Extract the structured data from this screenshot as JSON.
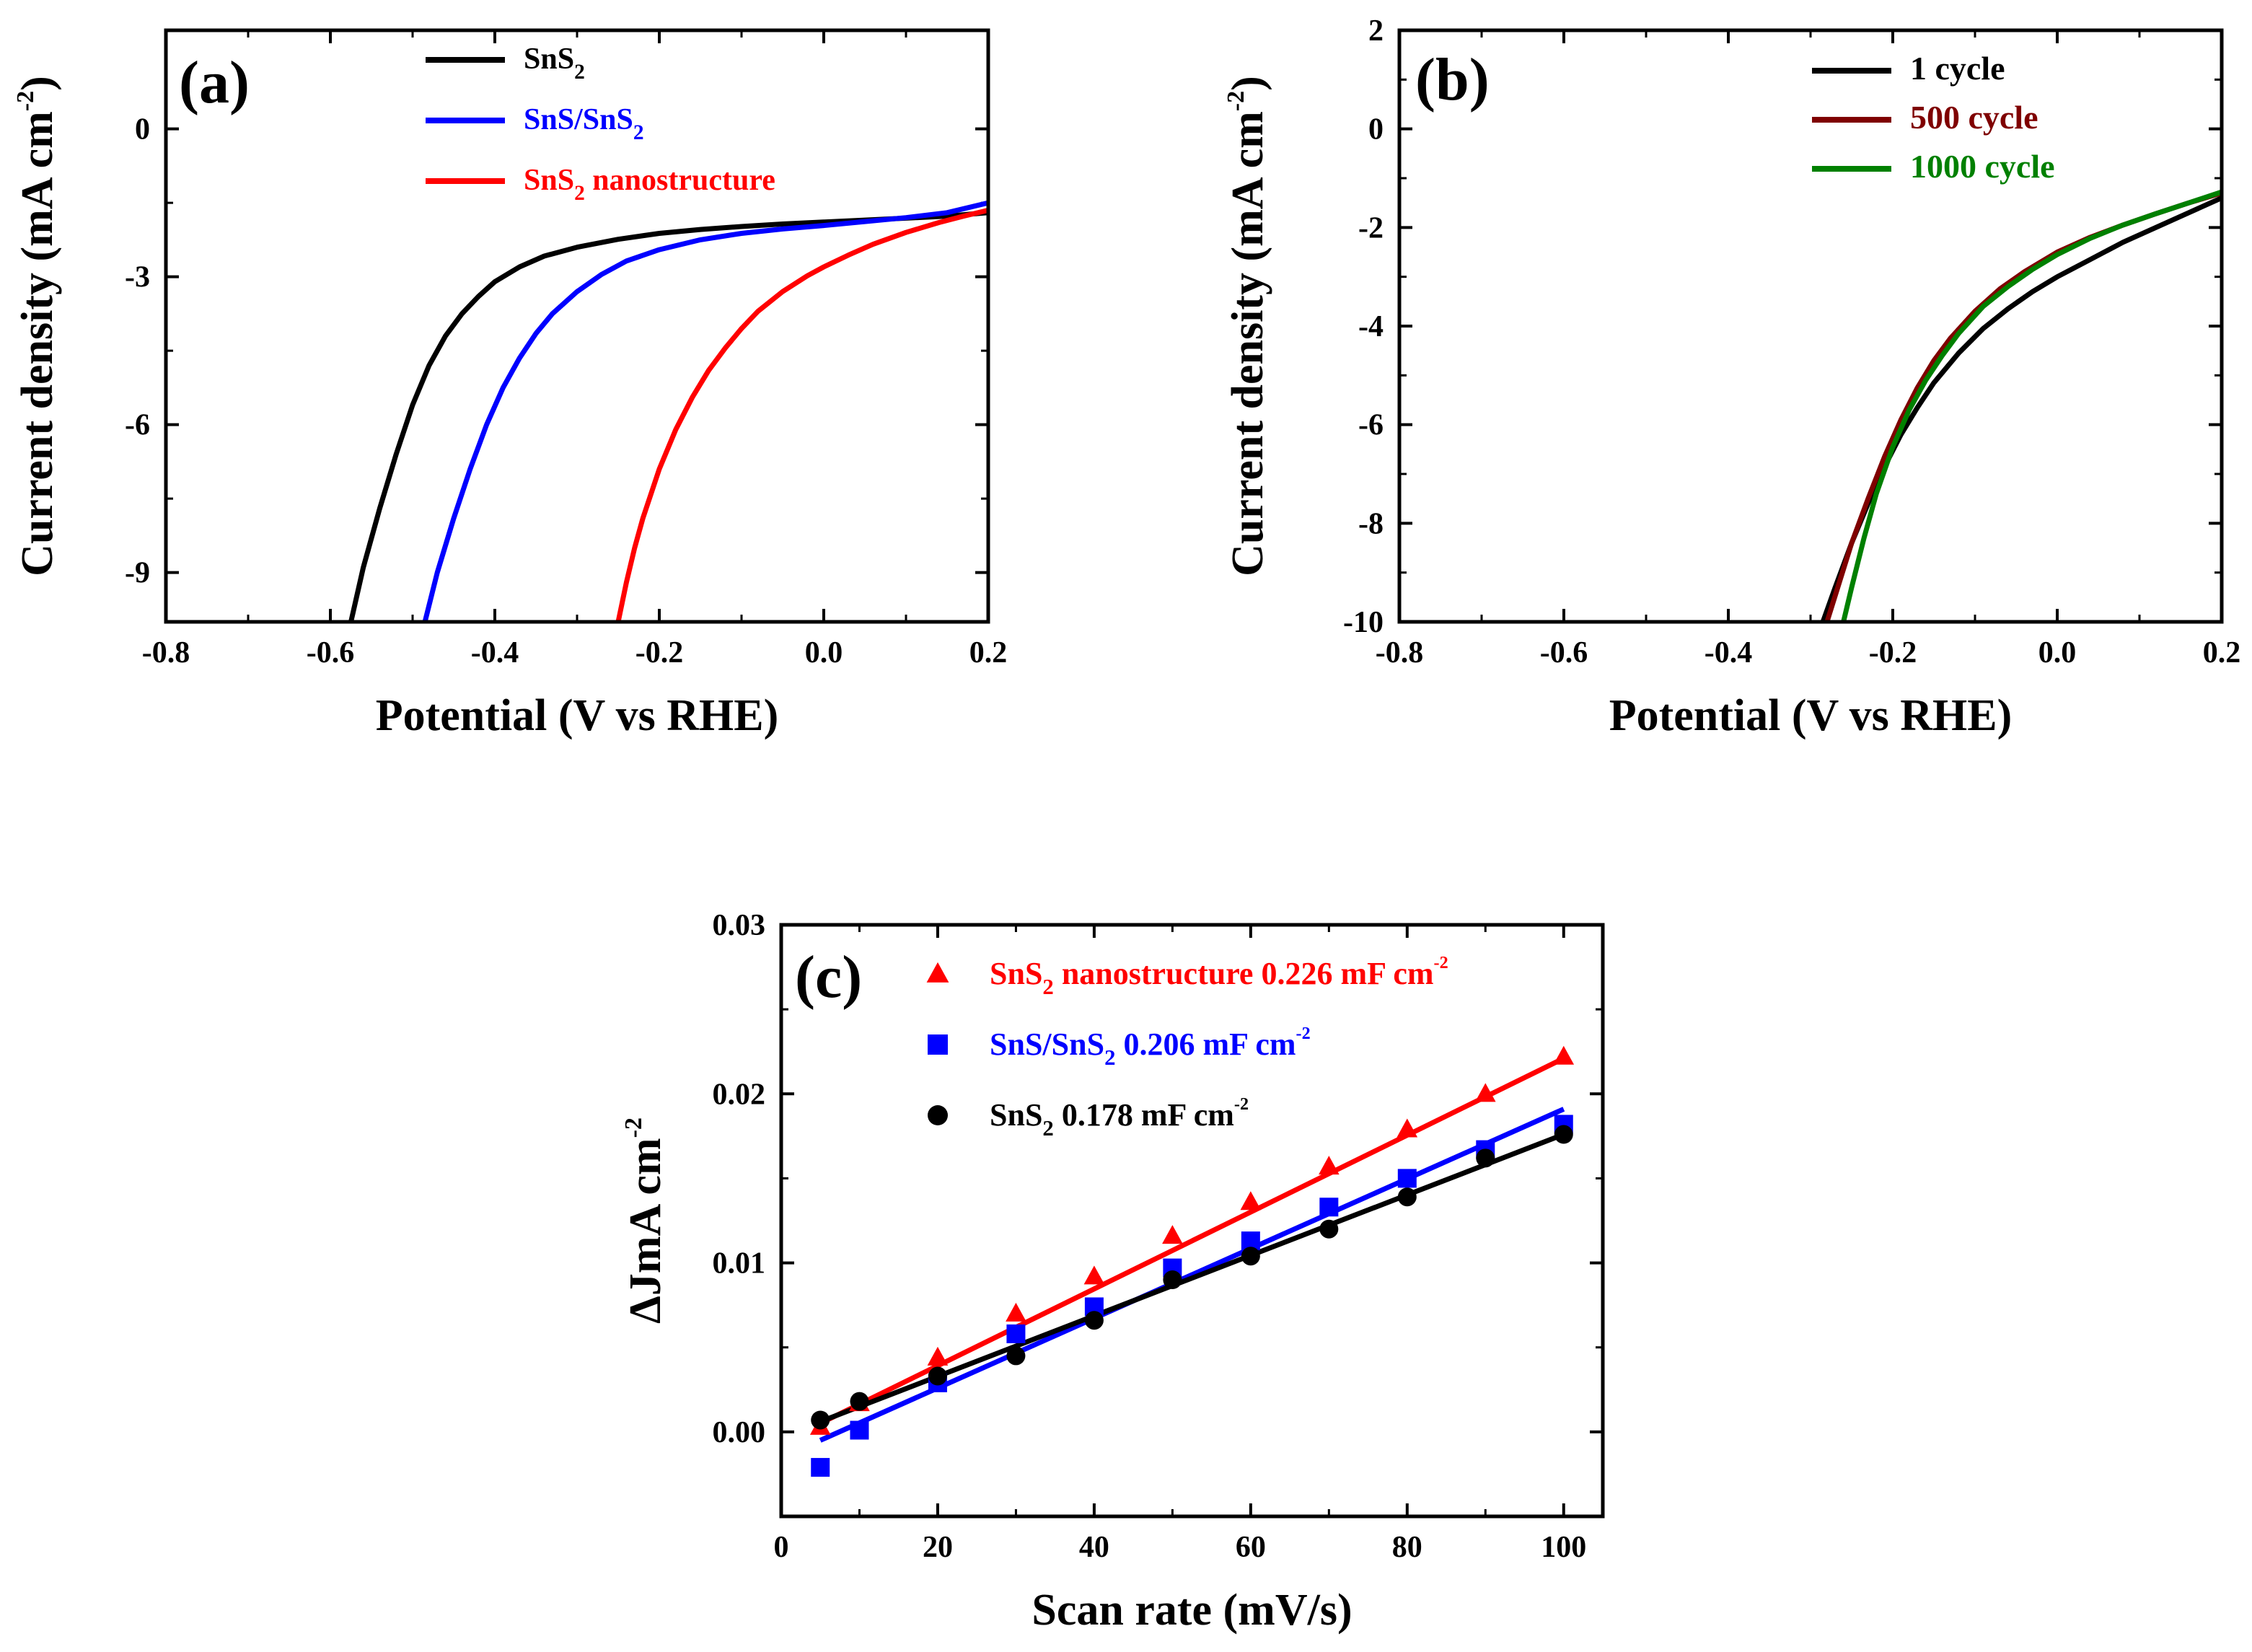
{
  "chart_data": [
    {
      "id": "a",
      "type": "line",
      "panel_label": "(a)",
      "title": "",
      "xlabel": "Potential (V vs RHE)",
      "ylabel": "Current density (mA cm",
      "ylabel_sup": "-2",
      "ylabel_end": ")",
      "xlim": [
        -0.8,
        0.2
      ],
      "ylim": [
        -10,
        2
      ],
      "xticks": [
        -0.8,
        -0.6,
        -0.4,
        -0.2,
        0.0,
        0.2
      ],
      "xtick_labels": [
        "-0.8",
        "-0.6",
        "-0.4",
        "-0.2",
        "0.0",
        "0.2"
      ],
      "yticks": [
        -9,
        -6,
        -3,
        0
      ],
      "ytick_labels": [
        "-9",
        "-6",
        "-3",
        "0"
      ],
      "legend_position": "top-right",
      "series": [
        {
          "name": "SnS2",
          "label_base": "SnS",
          "label_sub": "2",
          "label_rest": "",
          "color": "#000000",
          "x": [
            -0.575,
            -0.56,
            -0.54,
            -0.52,
            -0.5,
            -0.48,
            -0.46,
            -0.44,
            -0.42,
            -0.4,
            -0.37,
            -0.34,
            -0.3,
            -0.25,
            -0.2,
            -0.15,
            -0.1,
            -0.05,
            0.0,
            0.05,
            0.1,
            0.15,
            0.2
          ],
          "values": [
            -10.0,
            -8.9,
            -7.7,
            -6.6,
            -5.6,
            -4.8,
            -4.2,
            -3.75,
            -3.4,
            -3.1,
            -2.8,
            -2.58,
            -2.4,
            -2.24,
            -2.12,
            -2.04,
            -1.98,
            -1.93,
            -1.89,
            -1.85,
            -1.81,
            -1.77,
            -1.7
          ]
        },
        {
          "name": "SnS/SnS2",
          "label_base": "SnS/SnS",
          "label_sub": "2",
          "label_rest": "",
          "color": "#0000ff",
          "x": [
            -0.485,
            -0.47,
            -0.45,
            -0.43,
            -0.41,
            -0.39,
            -0.37,
            -0.35,
            -0.33,
            -0.3,
            -0.27,
            -0.24,
            -0.2,
            -0.15,
            -0.1,
            -0.05,
            0.0,
            0.05,
            0.1,
            0.15,
            0.2
          ],
          "values": [
            -10.0,
            -9.0,
            -7.9,
            -6.9,
            -6.0,
            -5.25,
            -4.65,
            -4.15,
            -3.75,
            -3.3,
            -2.95,
            -2.68,
            -2.45,
            -2.25,
            -2.12,
            -2.03,
            -1.96,
            -1.88,
            -1.8,
            -1.7,
            -1.5
          ]
        },
        {
          "name": "SnS2 nanostructure",
          "label_base": "SnS",
          "label_sub": "2",
          "label_rest": " nanostructure",
          "color": "#ff0000",
          "x": [
            -0.25,
            -0.24,
            -0.23,
            -0.22,
            -0.2,
            -0.18,
            -0.16,
            -0.14,
            -0.12,
            -0.1,
            -0.08,
            -0.05,
            -0.02,
            0.0,
            0.03,
            0.06,
            0.1,
            0.14,
            0.17,
            0.2
          ],
          "values": [
            -10.0,
            -9.2,
            -8.5,
            -7.9,
            -6.9,
            -6.1,
            -5.45,
            -4.9,
            -4.45,
            -4.05,
            -3.7,
            -3.3,
            -2.98,
            -2.8,
            -2.56,
            -2.34,
            -2.1,
            -1.9,
            -1.77,
            -1.65
          ]
        }
      ]
    },
    {
      "id": "b",
      "type": "line",
      "panel_label": "(b)",
      "title": "",
      "xlabel": "Potential (V vs RHE)",
      "ylabel": "Current density (mA cm",
      "ylabel_sup": "-2",
      "ylabel_end": ")",
      "xlim": [
        -0.8,
        0.2
      ],
      "ylim": [
        -10,
        2
      ],
      "xticks": [
        -0.8,
        -0.6,
        -0.4,
        -0.2,
        0.0,
        0.2
      ],
      "xtick_labels": [
        "-0.8",
        "-0.6",
        "-0.4",
        "-0.2",
        "0.0",
        "0.2"
      ],
      "yticks": [
        -10,
        -8,
        -6,
        -4,
        -2,
        0,
        2
      ],
      "ytick_labels": [
        "-10",
        "-8",
        "-6",
        "-4",
        "-2",
        "0",
        "2"
      ],
      "legend_position": "top-right",
      "series": [
        {
          "name": "1 cycle",
          "label_base": "1 cycle",
          "label_sub": "",
          "label_rest": "",
          "color": "#000000",
          "x": [
            -0.285,
            -0.27,
            -0.25,
            -0.23,
            -0.21,
            -0.19,
            -0.17,
            -0.15,
            -0.12,
            -0.09,
            -0.06,
            -0.03,
            0.0,
            0.04,
            0.08,
            0.12,
            0.16,
            0.2
          ],
          "values": [
            -10.0,
            -9.3,
            -8.4,
            -7.6,
            -6.85,
            -6.2,
            -5.65,
            -5.15,
            -4.55,
            -4.05,
            -3.65,
            -3.3,
            -3.0,
            -2.65,
            -2.3,
            -2.0,
            -1.7,
            -1.4
          ]
        },
        {
          "name": "500 cycle",
          "label_base": "500 cycle",
          "label_sub": "",
          "label_rest": "",
          "color": "#7f0000",
          "x": [
            -0.28,
            -0.265,
            -0.25,
            -0.23,
            -0.21,
            -0.19,
            -0.17,
            -0.15,
            -0.13,
            -0.1,
            -0.07,
            -0.04,
            0.0,
            0.04,
            0.08,
            0.12,
            0.16,
            0.2
          ],
          "values": [
            -10.0,
            -9.2,
            -8.4,
            -7.5,
            -6.65,
            -5.9,
            -5.25,
            -4.7,
            -4.25,
            -3.7,
            -3.25,
            -2.9,
            -2.5,
            -2.2,
            -1.95,
            -1.72,
            -1.5,
            -1.3
          ]
        },
        {
          "name": "1000 cycle",
          "label_base": "1000 cycle",
          "label_sub": "",
          "label_rest": "",
          "color": "#008000",
          "x": [
            -0.26,
            -0.25,
            -0.235,
            -0.22,
            -0.2,
            -0.18,
            -0.16,
            -0.14,
            -0.12,
            -0.09,
            -0.06,
            -0.03,
            0.0,
            0.04,
            0.08,
            0.12,
            0.16,
            0.2
          ],
          "values": [
            -10.0,
            -9.3,
            -8.3,
            -7.4,
            -6.45,
            -5.7,
            -5.1,
            -4.6,
            -4.15,
            -3.6,
            -3.2,
            -2.85,
            -2.55,
            -2.22,
            -1.95,
            -1.72,
            -1.5,
            -1.28
          ]
        }
      ]
    },
    {
      "id": "c",
      "type": "scatter",
      "panel_label": "(c)",
      "title": "",
      "xlabel": "Scan rate (mV/s)",
      "ylabel": "ΔJmA cm",
      "ylabel_sup": "-2",
      "ylabel_end": "",
      "xlim": [
        0,
        105
      ],
      "ylim": [
        -0.005,
        0.03
      ],
      "xticks": [
        0,
        20,
        40,
        60,
        80,
        100
      ],
      "xtick_labels": [
        "0",
        "20",
        "40",
        "60",
        "80",
        "100"
      ],
      "yticks": [
        0.0,
        0.01,
        0.02,
        0.03
      ],
      "ytick_labels": [
        "0.00",
        "0.01",
        "0.02",
        "0.03"
      ],
      "legend_position": "top-left",
      "series": [
        {
          "name": "SnS2 nanostructure 0.226 mF cm-2",
          "label_base": "SnS",
          "label_sub": "2",
          "label_rest": " nanostructure 0.226 mF cm",
          "label_sup": "-2",
          "color": "#ff0000",
          "marker": "triangle",
          "x": [
            5,
            10,
            20,
            30,
            40,
            50,
            60,
            70,
            80,
            90,
            100
          ],
          "values": [
            0.0003,
            0.0017,
            0.0044,
            0.007,
            0.0092,
            0.0116,
            0.0136,
            0.0157,
            0.0179,
            0.02,
            0.0222
          ],
          "fit_x": [
            5,
            100
          ],
          "fit_values": [
            0.0005,
            0.0221
          ]
        },
        {
          "name": "SnS/SnS2 0.206 mF cm-2",
          "label_base": "SnS/SnS",
          "label_sub": "2",
          "label_rest": " 0.206 mF cm",
          "label_sup": "-2",
          "color": "#0000ff",
          "marker": "square",
          "x": [
            5,
            10,
            20,
            30,
            40,
            50,
            60,
            70,
            80,
            90,
            100
          ],
          "values": [
            -0.0021,
            0.0001,
            0.0029,
            0.0058,
            0.0074,
            0.0097,
            0.0113,
            0.0133,
            0.015,
            0.0167,
            0.0182
          ],
          "fit_x": [
            5,
            100
          ],
          "fit_values": [
            -0.0005,
            0.0191
          ]
        },
        {
          "name": "SnS2 0.178 mF cm-2",
          "label_base": "SnS",
          "label_sub": "2",
          "label_rest": " 0.178 mF cm",
          "label_sup": "-2",
          "color": "#000000",
          "marker": "circle",
          "x": [
            5,
            10,
            20,
            30,
            40,
            50,
            60,
            70,
            80,
            90,
            100
          ],
          "values": [
            0.0007,
            0.0018,
            0.0033,
            0.0045,
            0.0066,
            0.009,
            0.0104,
            0.012,
            0.0139,
            0.0162,
            0.0176
          ],
          "fit_x": [
            5,
            100
          ],
          "fit_values": [
            0.0006,
            0.0176
          ]
        }
      ]
    }
  ]
}
